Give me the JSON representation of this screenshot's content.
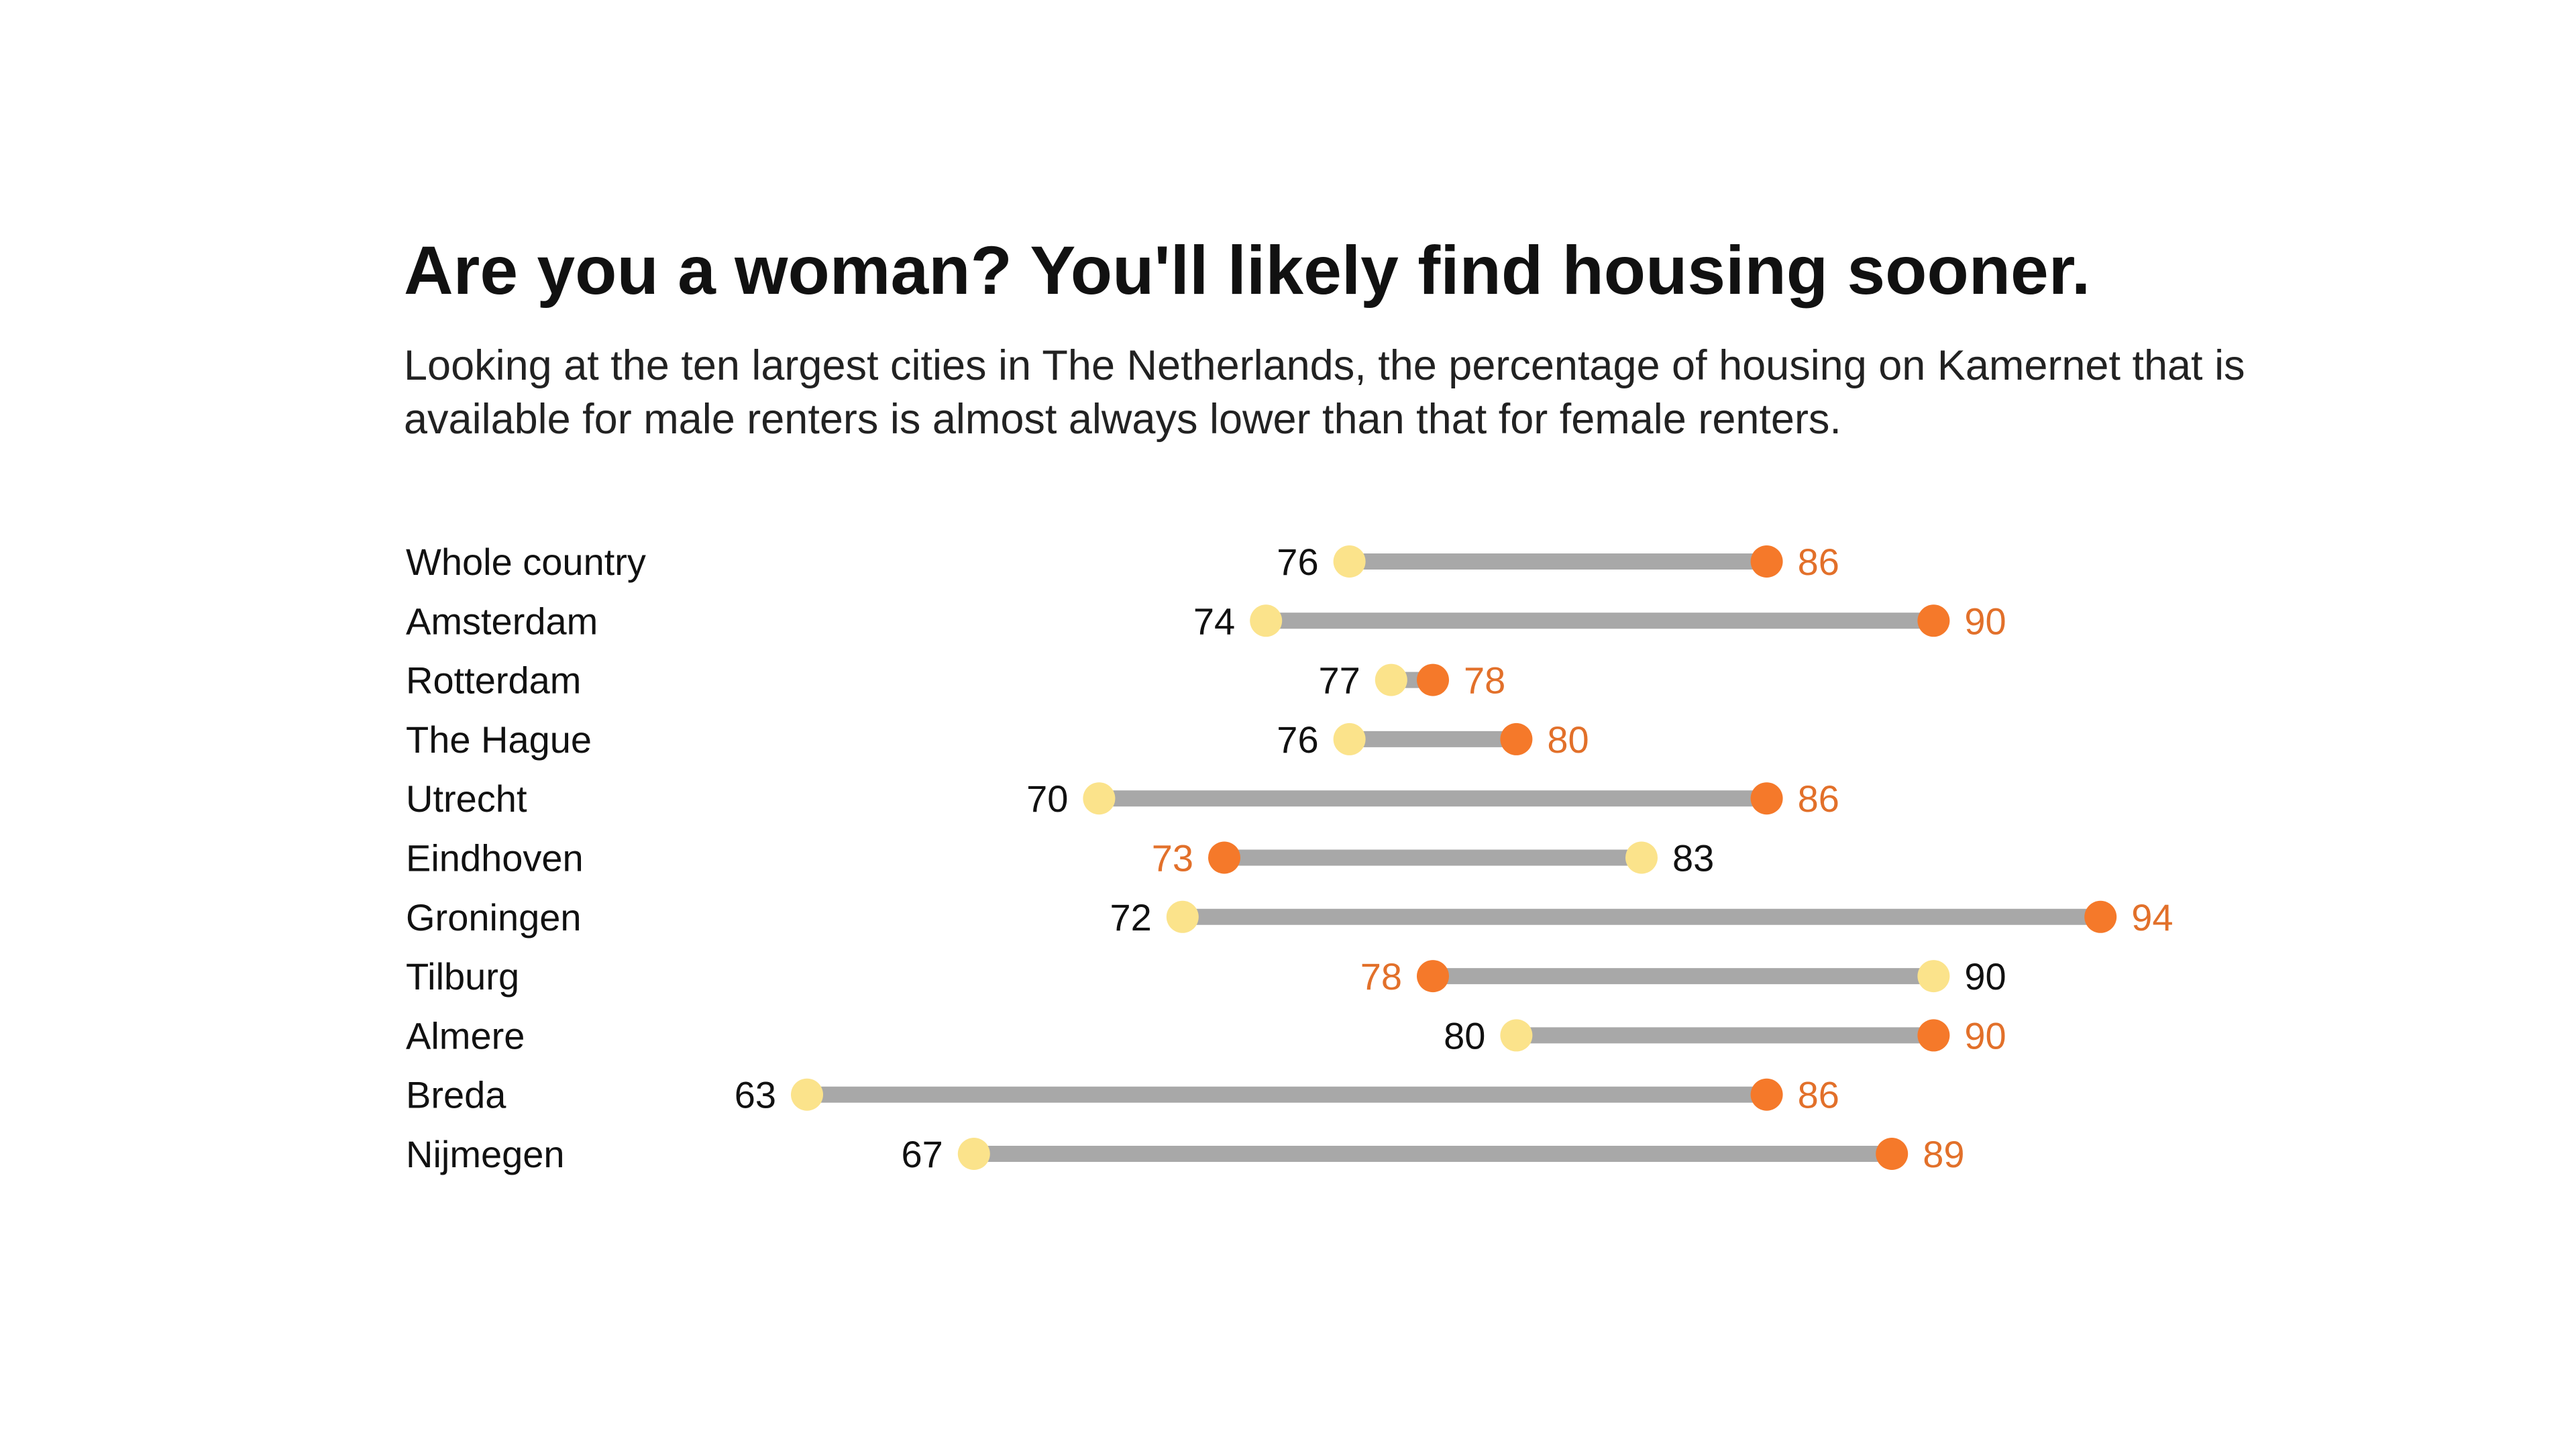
{
  "chart_data": {
    "type": "dumbbell",
    "title": "Are you a woman? You'll likely find housing sooner.",
    "subtitle": "Looking at the ten largest cities in The Netherlands, the percentage of housing on Kamernet that is available for male renters is almost always lower than that for female renters.",
    "categories": [
      "Whole country",
      "Amsterdam",
      "Rotterdam",
      "The Hague",
      "Utrecht",
      "Eindhoven",
      "Groningen",
      "Tilburg",
      "Almere",
      "Breda",
      "Nijmegen"
    ],
    "series": [
      {
        "key": "male",
        "values": [
          76,
          74,
          77,
          76,
          70,
          83,
          72,
          90,
          80,
          63,
          67
        ]
      },
      {
        "key": "female",
        "values": [
          86,
          90,
          78,
          80,
          86,
          73,
          94,
          78,
          90,
          86,
          89
        ]
      }
    ],
    "xlim": [
      56,
      102
    ],
    "grid": false,
    "legend": "none",
    "colors": {
      "male": "#FBE38B",
      "female": "#F5792A",
      "connector": "#A8A8A8",
      "text": "#111111",
      "female_label": "#E2702A"
    }
  }
}
